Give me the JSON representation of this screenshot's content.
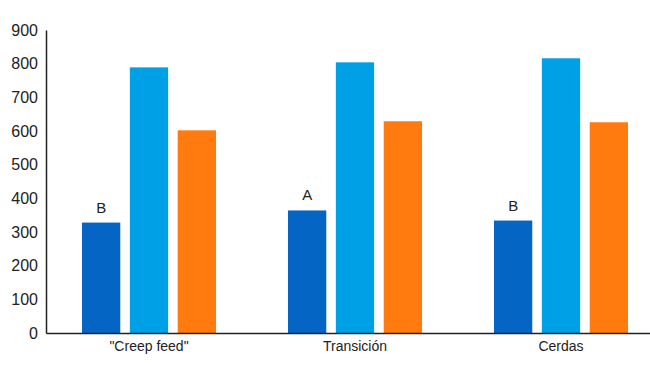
{
  "chart_data": {
    "type": "bar",
    "categories": [
      "\"Creep feed\"",
      "Transición",
      "Cerdas"
    ],
    "series": [
      {
        "color": "#0565c4",
        "values": [
          328,
          364,
          334
        ]
      },
      {
        "color": "#00a0e6",
        "values": [
          789,
          804,
          816
        ]
      },
      {
        "color": "#ff7b10",
        "values": [
          602,
          629,
          626
        ]
      }
    ],
    "ylim": [
      0,
      900
    ],
    "yticks": [
      0,
      100,
      200,
      300,
      400,
      500,
      600,
      700,
      800,
      900
    ],
    "grid": false,
    "annotations": [
      {
        "text": "B",
        "category": 0,
        "series": 0
      },
      {
        "text": "A",
        "category": 1,
        "series": 0
      },
      {
        "text": "B",
        "category": 2,
        "series": 0
      }
    ]
  }
}
